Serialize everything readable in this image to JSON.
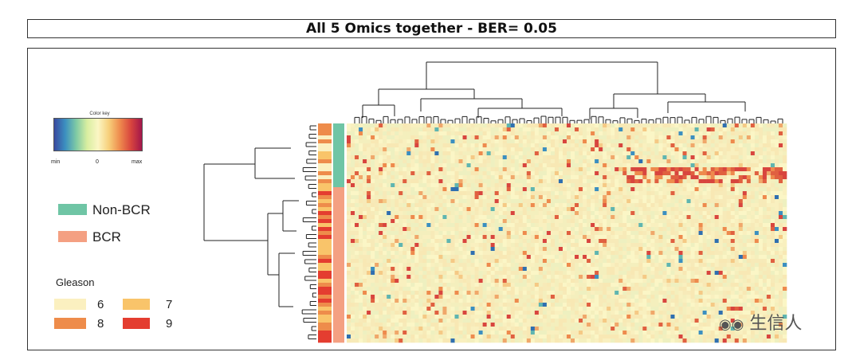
{
  "title": "All 5 Omics together  - BER= 0.05",
  "color_key": {
    "title": "Color key",
    "min_label": "min",
    "mid_label": "0",
    "max_label": "max",
    "colors": [
      "#3a4aa0",
      "#3b8fc0",
      "#7ec9a5",
      "#d8eea0",
      "#fbf6c4",
      "#f7cf7a",
      "#ee8a4d",
      "#d8453e",
      "#a3164a"
    ]
  },
  "group_legend": [
    {
      "label": "Non-BCR",
      "color": "#6fc5a5"
    },
    {
      "label": "BCR",
      "color": "#f4a082"
    }
  ],
  "gleason_legend": {
    "title": "Gleason",
    "items": [
      {
        "label": "6",
        "color": "#fbf0c0"
      },
      {
        "label": "7",
        "color": "#f9c46a"
      },
      {
        "label": "8",
        "color": "#ee8c4b"
      },
      {
        "label": "9",
        "color": "#e43d30"
      }
    ]
  },
  "watermark": "生信人",
  "chart_data": {
    "type": "heatmap",
    "title": "All 5 Omics together  - BER= 0.05",
    "row_annotation_groups": [
      "Non-BCR",
      "BCR"
    ],
    "row_annotation_gleason": [
      "6",
      "7",
      "8",
      "9"
    ],
    "scale": {
      "min": "min",
      "mid": "0",
      "max": "max"
    },
    "dendrograms": {
      "rows": true,
      "columns": true
    }
  }
}
